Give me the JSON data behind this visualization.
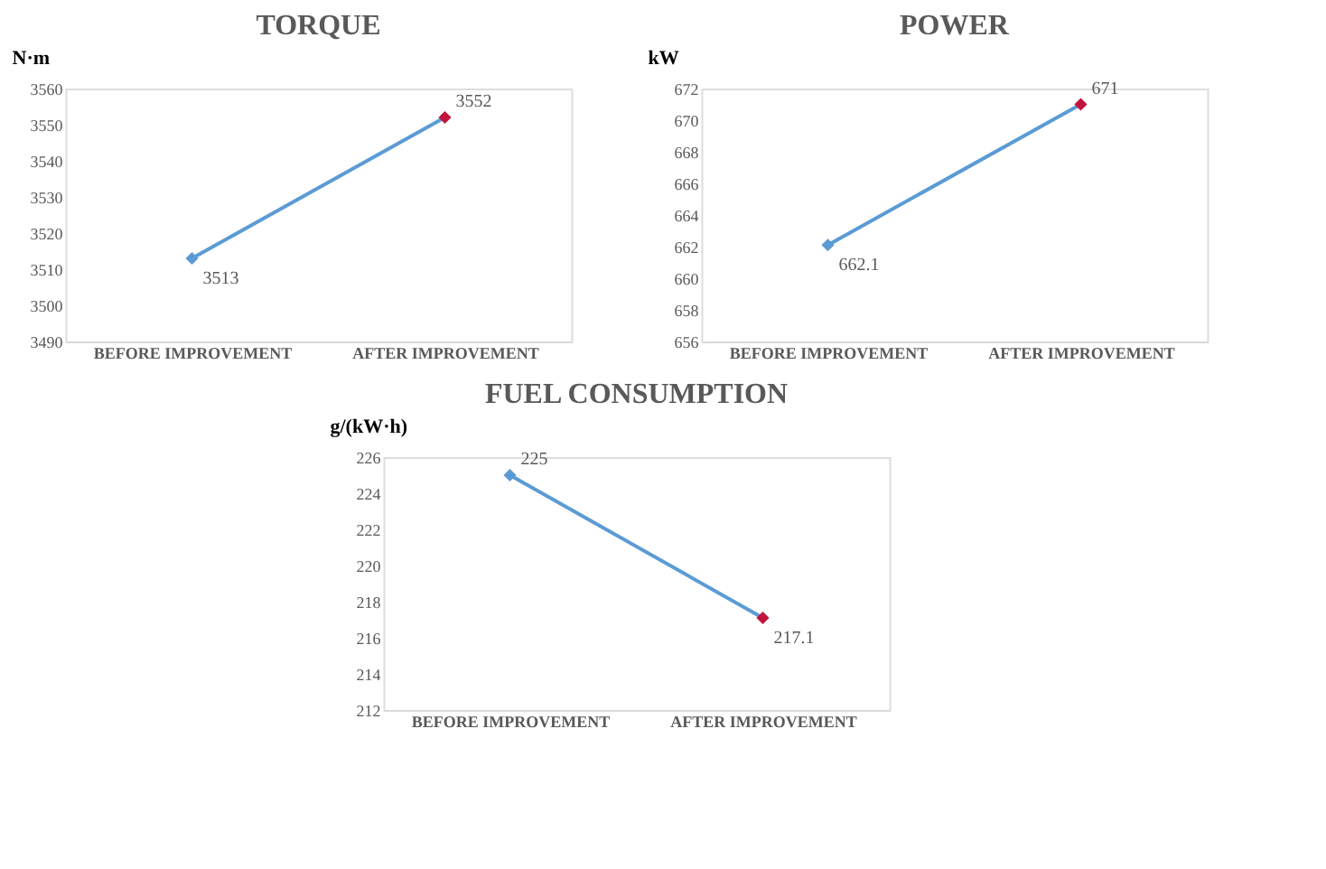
{
  "chart_data": [
    {
      "type": "line",
      "title": "TORQUE",
      "ylabel": "N·m",
      "categories": [
        "BEFORE IMPROVEMENT",
        "AFTER IMPROVEMENT"
      ],
      "series": [
        {
          "color": "#5b9bd5",
          "values": [
            3513,
            3552
          ]
        }
      ],
      "colors": [
        "#5b9bd5",
        "#c0143c"
      ],
      "ylim": [
        3490,
        3560
      ],
      "yticks": [
        3490,
        3500,
        3510,
        3520,
        3530,
        3540,
        3550,
        3560
      ],
      "marker": "diamond",
      "data_labels": true,
      "legend": false,
      "grid": false
    },
    {
      "type": "line",
      "title": "POWER",
      "ylabel": "kW",
      "categories": [
        "BEFORE IMPROVEMENT",
        "AFTER IMPROVEMENT"
      ],
      "series": [
        {
          "color": "#5b9bd5",
          "values": [
            662.1,
            671
          ]
        }
      ],
      "colors": [
        "#5b9bd5",
        "#c0143c"
      ],
      "ylim": [
        656,
        672
      ],
      "yticks": [
        656,
        658,
        660,
        662,
        664,
        666,
        668,
        670,
        672
      ],
      "marker": "diamond",
      "data_labels": true,
      "legend": false,
      "grid": false
    },
    {
      "type": "line",
      "title": "FUEL CONSUMPTION",
      "ylabel": "g/(kW·h)",
      "categories": [
        "BEFORE IMPROVEMENT",
        "AFTER IMPROVEMENT"
      ],
      "series": [
        {
          "color": "#5b9bd5",
          "values": [
            225,
            217.1
          ]
        }
      ],
      "colors": [
        "#5b9bd5",
        "#c0143c"
      ],
      "ylim": [
        212,
        226
      ],
      "yticks": [
        212,
        214,
        216,
        218,
        220,
        222,
        224,
        226
      ],
      "marker": "diamond",
      "data_labels": true,
      "legend": false,
      "grid": false
    }
  ]
}
